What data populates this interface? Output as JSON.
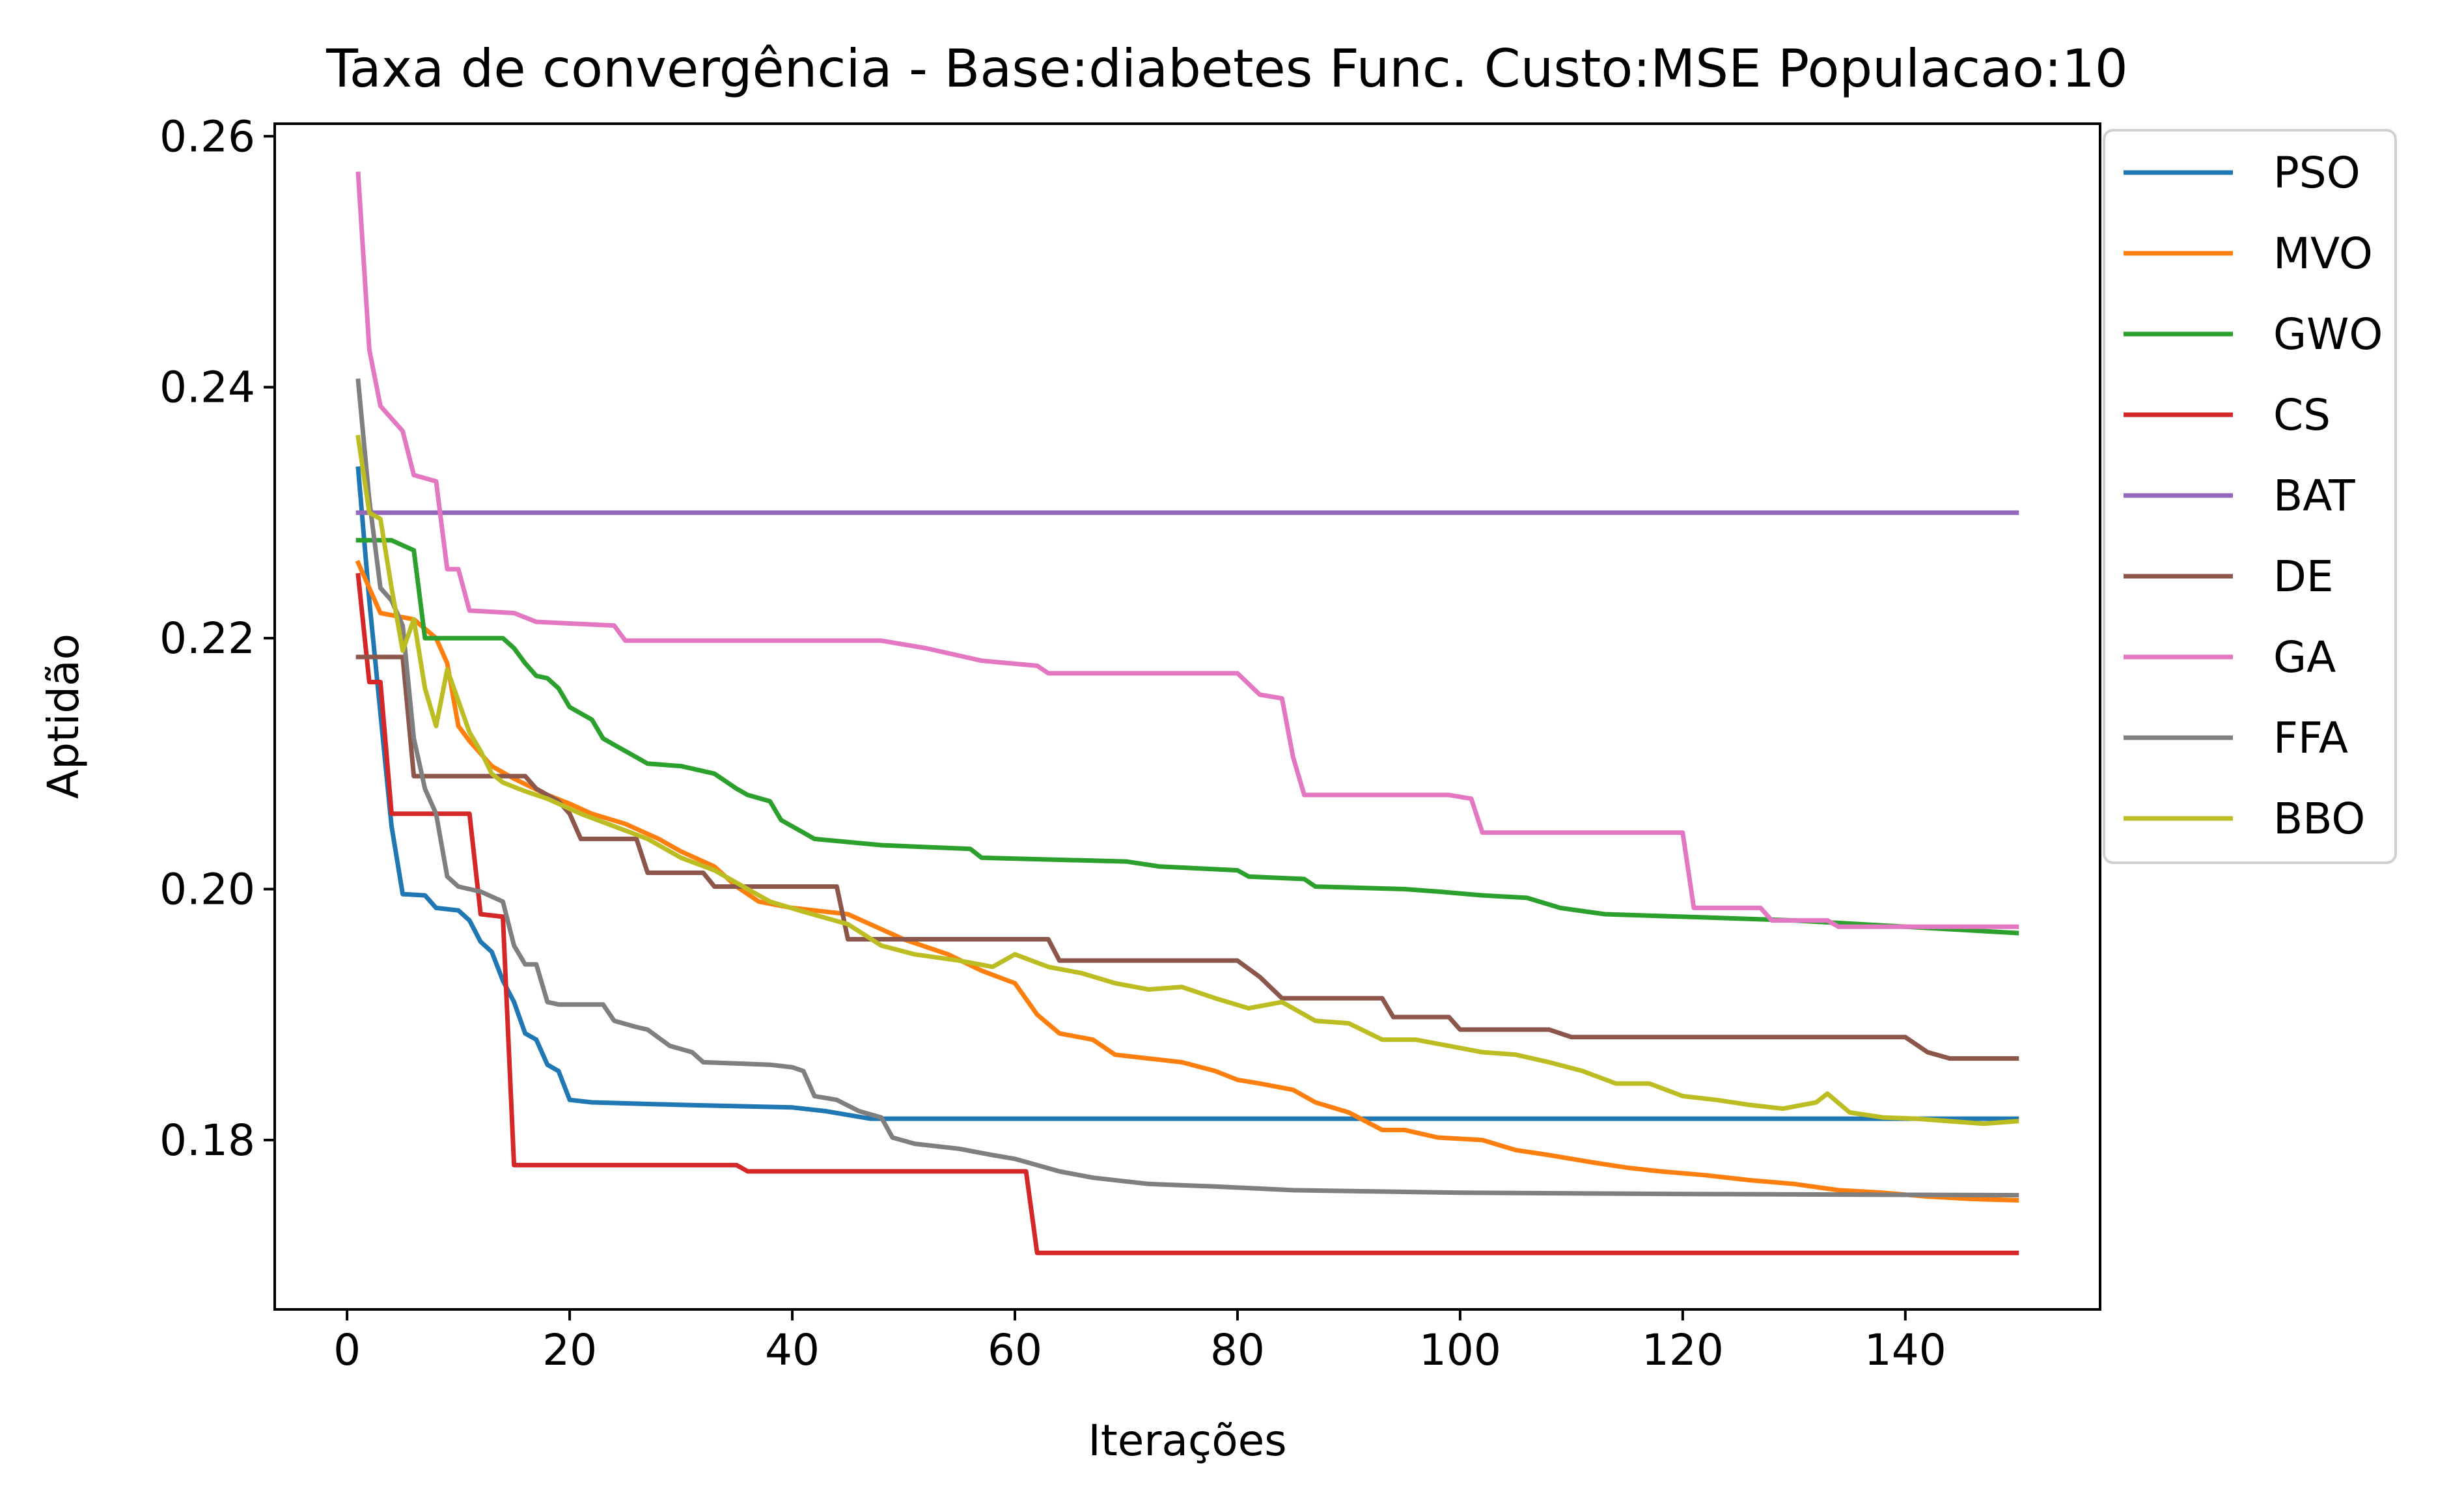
{
  "chart_data": {
    "type": "line",
    "title": "Taxa de convergência - Base:diabetes Func. Custo:MSE Populacao:10",
    "xlabel": "Iterações",
    "ylabel": "Aptidão",
    "xlim": [
      -6.5,
      157.5
    ],
    "ylim": [
      0.1665,
      0.261
    ],
    "xticks": [
      0,
      20,
      40,
      60,
      80,
      100,
      120,
      140
    ],
    "xtick_labels": [
      "0",
      "20",
      "40",
      "60",
      "80",
      "100",
      "120",
      "140"
    ],
    "yticks": [
      0.18,
      0.2,
      0.22,
      0.24,
      0.26
    ],
    "ytick_labels": [
      "0.18",
      "0.20",
      "0.22",
      "0.24",
      "0.26"
    ],
    "grid": false,
    "legend_position": "outside-right-top",
    "series": [
      {
        "name": "PSO",
        "color": "#1f77b4",
        "points": [
          [
            1,
            0.2335
          ],
          [
            2,
            0.223
          ],
          [
            3,
            0.214
          ],
          [
            4,
            0.205
          ],
          [
            5,
            0.1996
          ],
          [
            7,
            0.1995
          ],
          [
            8,
            0.1985
          ],
          [
            10,
            0.1983
          ],
          [
            11,
            0.1975
          ],
          [
            12,
            0.1958
          ],
          [
            13,
            0.195
          ],
          [
            14,
            0.1927
          ],
          [
            15,
            0.191
          ],
          [
            16,
            0.1885
          ],
          [
            17,
            0.188
          ],
          [
            18,
            0.186
          ],
          [
            19,
            0.1855
          ],
          [
            20,
            0.1832
          ],
          [
            22,
            0.183
          ],
          [
            30,
            0.1828
          ],
          [
            40,
            0.1826
          ],
          [
            43,
            0.1823
          ],
          [
            45,
            0.182
          ],
          [
            47,
            0.1817
          ],
          [
            150,
            0.1817
          ]
        ]
      },
      {
        "name": "MVO",
        "color": "#ff7f0e",
        "points": [
          [
            1,
            0.226
          ],
          [
            2,
            0.224
          ],
          [
            3,
            0.222
          ],
          [
            6,
            0.2215
          ],
          [
            8,
            0.22
          ],
          [
            9,
            0.218
          ],
          [
            10,
            0.213
          ],
          [
            11,
            0.2118
          ],
          [
            12,
            0.2108
          ],
          [
            13,
            0.2098
          ],
          [
            15,
            0.2088
          ],
          [
            18,
            0.2075
          ],
          [
            20,
            0.2068
          ],
          [
            22,
            0.206
          ],
          [
            25,
            0.2052
          ],
          [
            28,
            0.204
          ],
          [
            30,
            0.203
          ],
          [
            33,
            0.2018
          ],
          [
            35,
            0.2002
          ],
          [
            37,
            0.199
          ],
          [
            40,
            0.1985
          ],
          [
            45,
            0.198
          ],
          [
            48,
            0.1968
          ],
          [
            50,
            0.196
          ],
          [
            54,
            0.1948
          ],
          [
            57,
            0.1935
          ],
          [
            60,
            0.1925
          ],
          [
            62,
            0.19
          ],
          [
            64,
            0.1885
          ],
          [
            67,
            0.188
          ],
          [
            69,
            0.1868
          ],
          [
            72,
            0.1865
          ],
          [
            75,
            0.1862
          ],
          [
            78,
            0.1855
          ],
          [
            80,
            0.1848
          ],
          [
            82,
            0.1845
          ],
          [
            85,
            0.184
          ],
          [
            87,
            0.183
          ],
          [
            90,
            0.1822
          ],
          [
            93,
            0.1808
          ],
          [
            95,
            0.1808
          ],
          [
            98,
            0.1802
          ],
          [
            102,
            0.18
          ],
          [
            105,
            0.1792
          ],
          [
            108,
            0.1788
          ],
          [
            112,
            0.1782
          ],
          [
            115,
            0.1778
          ],
          [
            118,
            0.1775
          ],
          [
            122,
            0.1772
          ],
          [
            126,
            0.1768
          ],
          [
            130,
            0.1765
          ],
          [
            134,
            0.176
          ],
          [
            138,
            0.1758
          ],
          [
            142,
            0.1755
          ],
          [
            146,
            0.1753
          ],
          [
            150,
            0.1752
          ]
        ]
      },
      {
        "name": "GWO",
        "color": "#2ca02c",
        "points": [
          [
            1,
            0.2278
          ],
          [
            4,
            0.2278
          ],
          [
            6,
            0.227
          ],
          [
            7,
            0.22
          ],
          [
            14,
            0.22
          ],
          [
            15,
            0.2192
          ],
          [
            16,
            0.218
          ],
          [
            17,
            0.217
          ],
          [
            18,
            0.2168
          ],
          [
            19,
            0.216
          ],
          [
            20,
            0.2145
          ],
          [
            22,
            0.2135
          ],
          [
            23,
            0.212
          ],
          [
            24,
            0.2115
          ],
          [
            26,
            0.2105
          ],
          [
            27,
            0.21
          ],
          [
            30,
            0.2098
          ],
          [
            33,
            0.2092
          ],
          [
            35,
            0.208
          ],
          [
            36,
            0.2075
          ],
          [
            38,
            0.207
          ],
          [
            39,
            0.2055
          ],
          [
            41,
            0.2045
          ],
          [
            42,
            0.204
          ],
          [
            48,
            0.2035
          ],
          [
            56,
            0.2032
          ],
          [
            57,
            0.2025
          ],
          [
            70,
            0.2022
          ],
          [
            73,
            0.2018
          ],
          [
            80,
            0.2015
          ],
          [
            81,
            0.201
          ],
          [
            86,
            0.2008
          ],
          [
            87,
            0.2002
          ],
          [
            95,
            0.2
          ],
          [
            98,
            0.1998
          ],
          [
            102,
            0.1995
          ],
          [
            106,
            0.1993
          ],
          [
            109,
            0.1985
          ],
          [
            113,
            0.198
          ],
          [
            120,
            0.1978
          ],
          [
            130,
            0.1975
          ],
          [
            140,
            0.197
          ],
          [
            150,
            0.1965
          ]
        ]
      },
      {
        "name": "CS",
        "color": "#d62728",
        "points": [
          [
            1,
            0.225
          ],
          [
            2,
            0.2165
          ],
          [
            3,
            0.2165
          ],
          [
            4,
            0.206
          ],
          [
            11,
            0.206
          ],
          [
            12,
            0.198
          ],
          [
            14,
            0.1978
          ],
          [
            15,
            0.178
          ],
          [
            35,
            0.178
          ],
          [
            36,
            0.1775
          ],
          [
            61,
            0.1775
          ],
          [
            62,
            0.171
          ],
          [
            150,
            0.171
          ]
        ]
      },
      {
        "name": "BAT",
        "color": "#9467bd",
        "points": [
          [
            1,
            0.23
          ],
          [
            150,
            0.23
          ]
        ]
      },
      {
        "name": "DE",
        "color": "#8c564b",
        "points": [
          [
            1,
            0.2185
          ],
          [
            5,
            0.2185
          ],
          [
            6,
            0.209
          ],
          [
            16,
            0.209
          ],
          [
            17,
            0.208
          ],
          [
            19,
            0.207
          ],
          [
            20,
            0.206
          ],
          [
            21,
            0.204
          ],
          [
            26,
            0.204
          ],
          [
            27,
            0.2013
          ],
          [
            32,
            0.2013
          ],
          [
            33,
            0.2002
          ],
          [
            44,
            0.2002
          ],
          [
            45,
            0.196
          ],
          [
            63,
            0.196
          ],
          [
            64,
            0.1943
          ],
          [
            80,
            0.1943
          ],
          [
            82,
            0.193
          ],
          [
            84,
            0.1913
          ],
          [
            93,
            0.1913
          ],
          [
            94,
            0.1898
          ],
          [
            99,
            0.1898
          ],
          [
            100,
            0.1888
          ],
          [
            108,
            0.1888
          ],
          [
            110,
            0.1882
          ],
          [
            140,
            0.1882
          ],
          [
            142,
            0.187
          ],
          [
            144,
            0.1865
          ],
          [
            150,
            0.1865
          ]
        ]
      },
      {
        "name": "GA",
        "color": "#e377c2",
        "points": [
          [
            1,
            0.257
          ],
          [
            2,
            0.243
          ],
          [
            3,
            0.2385
          ],
          [
            5,
            0.2365
          ],
          [
            6,
            0.233
          ],
          [
            8,
            0.2325
          ],
          [
            9,
            0.2255
          ],
          [
            10,
            0.2255
          ],
          [
            11,
            0.2222
          ],
          [
            15,
            0.222
          ],
          [
            17,
            0.2213
          ],
          [
            24,
            0.221
          ],
          [
            25,
            0.2198
          ],
          [
            48,
            0.2198
          ],
          [
            52,
            0.2192
          ],
          [
            57,
            0.2182
          ],
          [
            62,
            0.2178
          ],
          [
            63,
            0.2172
          ],
          [
            80,
            0.2172
          ],
          [
            82,
            0.2155
          ],
          [
            84,
            0.2152
          ],
          [
            85,
            0.2105
          ],
          [
            86,
            0.2075
          ],
          [
            99,
            0.2075
          ],
          [
            101,
            0.2072
          ],
          [
            102,
            0.2045
          ],
          [
            120,
            0.2045
          ],
          [
            121,
            0.1985
          ],
          [
            127,
            0.1985
          ],
          [
            128,
            0.1975
          ],
          [
            133,
            0.1975
          ],
          [
            134,
            0.197
          ],
          [
            150,
            0.197
          ]
        ]
      },
      {
        "name": "FFA",
        "color": "#7f7f7f",
        "points": [
          [
            1,
            0.2405
          ],
          [
            2,
            0.231
          ],
          [
            3,
            0.224
          ],
          [
            4,
            0.223
          ],
          [
            5,
            0.221
          ],
          [
            6,
            0.212
          ],
          [
            7,
            0.208
          ],
          [
            8,
            0.206
          ],
          [
            9,
            0.201
          ],
          [
            10,
            0.2002
          ],
          [
            11,
            0.2
          ],
          [
            12,
            0.1998
          ],
          [
            14,
            0.199
          ],
          [
            15,
            0.1955
          ],
          [
            16,
            0.194
          ],
          [
            17,
            0.194
          ],
          [
            18,
            0.191
          ],
          [
            19,
            0.1908
          ],
          [
            23,
            0.1908
          ],
          [
            24,
            0.1895
          ],
          [
            26,
            0.189
          ],
          [
            27,
            0.1888
          ],
          [
            29,
            0.1875
          ],
          [
            31,
            0.187
          ],
          [
            32,
            0.1862
          ],
          [
            38,
            0.186
          ],
          [
            40,
            0.1858
          ],
          [
            41,
            0.1855
          ],
          [
            42,
            0.1835
          ],
          [
            44,
            0.1832
          ],
          [
            46,
            0.1823
          ],
          [
            48,
            0.1818
          ],
          [
            49,
            0.1802
          ],
          [
            51,
            0.1797
          ],
          [
            55,
            0.1793
          ],
          [
            58,
            0.1788
          ],
          [
            60,
            0.1785
          ],
          [
            64,
            0.1775
          ],
          [
            67,
            0.177
          ],
          [
            72,
            0.1765
          ],
          [
            78,
            0.1763
          ],
          [
            85,
            0.176
          ],
          [
            100,
            0.1758
          ],
          [
            120,
            0.1757
          ],
          [
            150,
            0.1756
          ]
        ]
      },
      {
        "name": "BBO",
        "color": "#bcbd22",
        "points": [
          [
            1,
            0.236
          ],
          [
            2,
            0.23
          ],
          [
            3,
            0.2295
          ],
          [
            4,
            0.224
          ],
          [
            5,
            0.219
          ],
          [
            6,
            0.2215
          ],
          [
            7,
            0.216
          ],
          [
            8,
            0.213
          ],
          [
            9,
            0.2175
          ],
          [
            10,
            0.215
          ],
          [
            11,
            0.2125
          ],
          [
            12,
            0.211
          ],
          [
            13,
            0.2092
          ],
          [
            14,
            0.2085
          ],
          [
            16,
            0.2078
          ],
          [
            18,
            0.2072
          ],
          [
            21,
            0.206
          ],
          [
            24,
            0.205
          ],
          [
            27,
            0.204
          ],
          [
            30,
            0.2025
          ],
          [
            33,
            0.2015
          ],
          [
            36,
            0.2
          ],
          [
            38,
            0.199
          ],
          [
            41,
            0.1982
          ],
          [
            45,
            0.1972
          ],
          [
            48,
            0.1955
          ],
          [
            51,
            0.1948
          ],
          [
            55,
            0.1943
          ],
          [
            58,
            0.1938
          ],
          [
            60,
            0.1948
          ],
          [
            63,
            0.1938
          ],
          [
            66,
            0.1933
          ],
          [
            69,
            0.1925
          ],
          [
            72,
            0.192
          ],
          [
            75,
            0.1922
          ],
          [
            78,
            0.1913
          ],
          [
            81,
            0.1905
          ],
          [
            84,
            0.191
          ],
          [
            87,
            0.1895
          ],
          [
            90,
            0.1893
          ],
          [
            93,
            0.188
          ],
          [
            96,
            0.188
          ],
          [
            99,
            0.1875
          ],
          [
            102,
            0.187
          ],
          [
            105,
            0.1868
          ],
          [
            108,
            0.1862
          ],
          [
            111,
            0.1855
          ],
          [
            114,
            0.1845
          ],
          [
            117,
            0.1845
          ],
          [
            120,
            0.1835
          ],
          [
            123,
            0.1832
          ],
          [
            126,
            0.1828
          ],
          [
            129,
            0.1825
          ],
          [
            132,
            0.183
          ],
          [
            133,
            0.1837
          ],
          [
            135,
            0.1822
          ],
          [
            138,
            0.1818
          ],
          [
            141,
            0.1817
          ],
          [
            144,
            0.1815
          ],
          [
            147,
            0.1813
          ],
          [
            150,
            0.1815
          ]
        ]
      }
    ]
  }
}
